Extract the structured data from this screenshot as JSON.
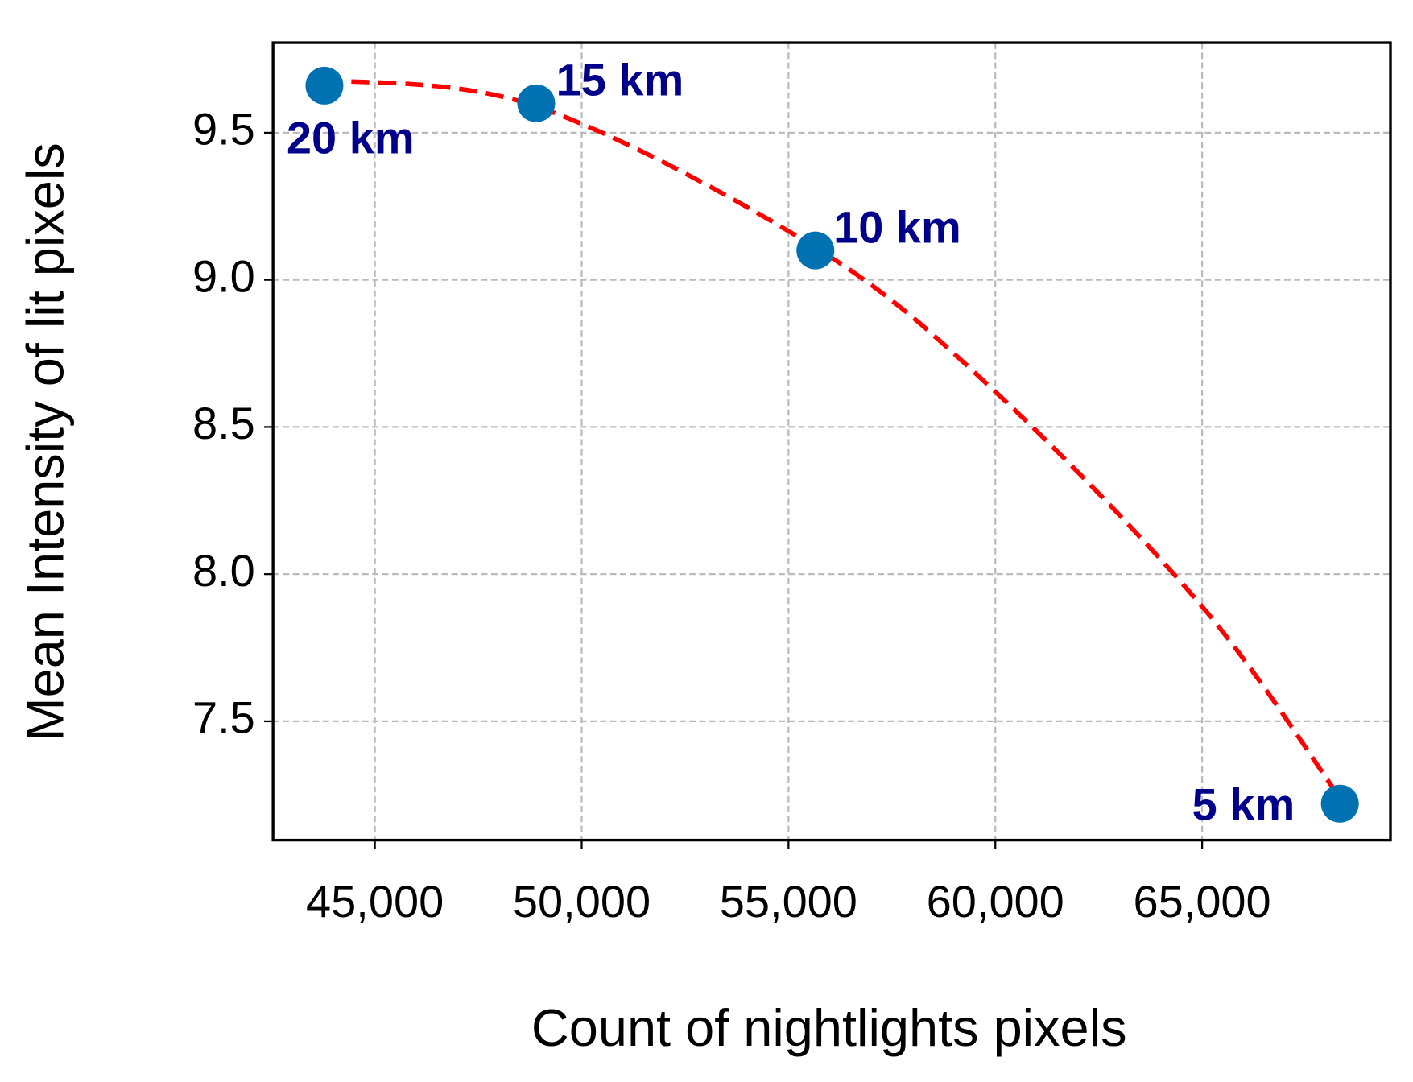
{
  "chart_data": {
    "type": "scatter",
    "x_label": "Count of nightlights pixels",
    "y_label": "Mean Intensity of lit pixels",
    "xlim": [
      42538,
      69553
    ],
    "ylim": [
      7.096,
      9.806
    ],
    "xticks": [
      {
        "value": 45000,
        "label": "45,000"
      },
      {
        "value": 50000,
        "label": "50,000"
      },
      {
        "value": 55000,
        "label": "55,000"
      },
      {
        "value": 60000,
        "label": "60,000"
      },
      {
        "value": 65000,
        "label": "65,000"
      }
    ],
    "yticks": [
      7.5,
      {
        "value": 8,
        "label": "8.0"
      },
      8.5,
      {
        "value": 9,
        "label": "9.0"
      },
      9.5
    ],
    "grid": true,
    "series": [
      {
        "color": "#0072b2",
        "x": [
          68330,
          55650,
          48900,
          43780
        ],
        "values": [
          7.22,
          9.1,
          9.6,
          9.66
        ],
        "labels": [
          "5 km",
          "10 km",
          "15 km",
          "20 km"
        ]
      },
      {
        "color": "#ff0000",
        "style": "dashed",
        "x": [
          43780,
          48900,
          55650,
          60000,
          65000,
          68330
        ],
        "values": [
          9.68,
          9.59,
          9.11,
          8.62,
          7.89,
          7.24
        ]
      }
    ]
  }
}
